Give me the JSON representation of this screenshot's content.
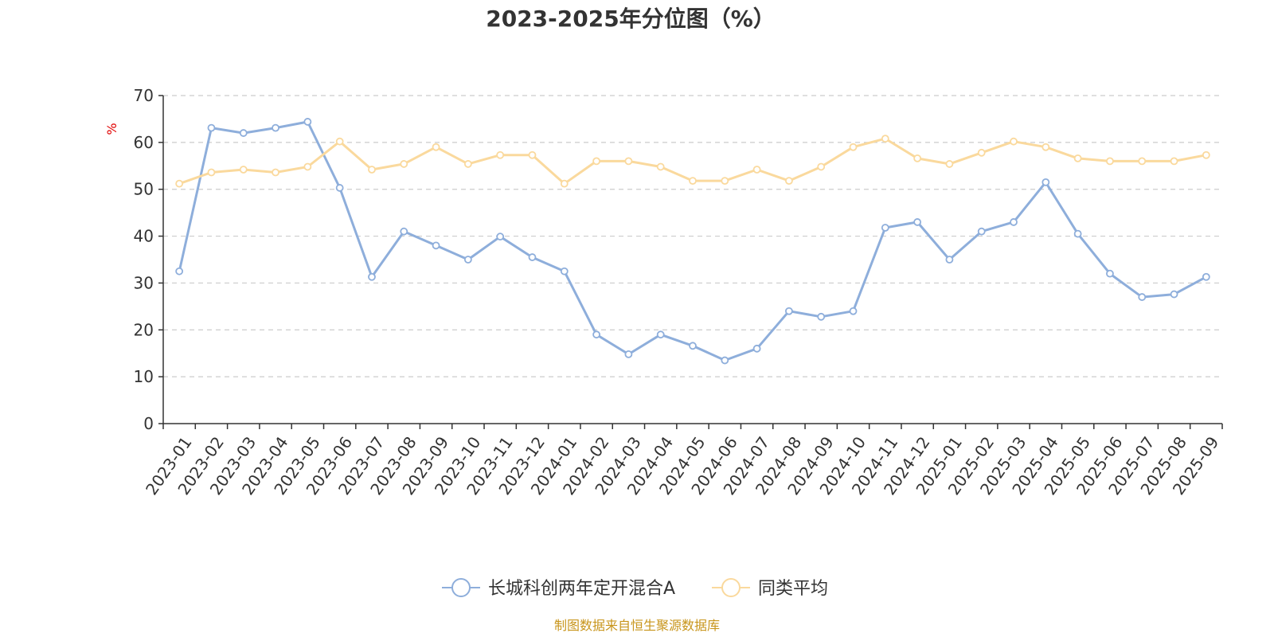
{
  "chart_data": {
    "type": "line",
    "title": "2023-2025年分位图（%）",
    "ylabel": "%",
    "ylim": [
      0,
      70
    ],
    "yticks": [
      0,
      10,
      20,
      30,
      40,
      50,
      60,
      70
    ],
    "grid": true,
    "legend_position": "bottom",
    "categories": [
      "2023-01",
      "2023-02",
      "2023-03",
      "2023-04",
      "2023-05",
      "2023-06",
      "2023-07",
      "2023-08",
      "2023-09",
      "2023-10",
      "2023-11",
      "2023-12",
      "2024-01",
      "2024-02",
      "2024-03",
      "2024-04",
      "2024-05",
      "2024-06",
      "2024-07",
      "2024-08",
      "2024-09",
      "2024-10",
      "2024-11",
      "2024-12",
      "2025-01",
      "2025-02",
      "2025-03",
      "2025-04",
      "2025-05",
      "2025-06",
      "2025-07",
      "2025-08",
      "2025-09"
    ],
    "series": [
      {
        "name": "长城科创两年定开混合A",
        "color": "#8eaedb",
        "values": [
          32.5,
          63.1,
          62.0,
          63.1,
          64.4,
          50.3,
          31.3,
          41.0,
          38.0,
          35.0,
          39.9,
          35.5,
          32.5,
          19.0,
          14.8,
          19.0,
          16.6,
          13.5,
          16.0,
          24.0,
          22.8,
          24.0,
          41.8,
          43.0,
          35.0,
          41.0,
          43.0,
          51.5,
          40.5,
          32.0,
          27.0,
          27.6,
          31.3
        ]
      },
      {
        "name": "同类平均",
        "color": "#fad99d",
        "values": [
          51.2,
          53.6,
          54.2,
          53.6,
          54.8,
          60.2,
          54.2,
          55.4,
          59.0,
          55.4,
          57.3,
          57.3,
          51.2,
          56.0,
          56.0,
          54.8,
          51.8,
          51.8,
          54.2,
          51.8,
          54.8,
          59.0,
          60.8,
          56.6,
          55.4,
          57.8,
          60.2,
          59.0,
          56.6,
          56.0,
          56.0,
          56.0,
          57.3
        ]
      }
    ]
  },
  "footer": {
    "source": "制图数据来自恒生聚源数据库"
  }
}
